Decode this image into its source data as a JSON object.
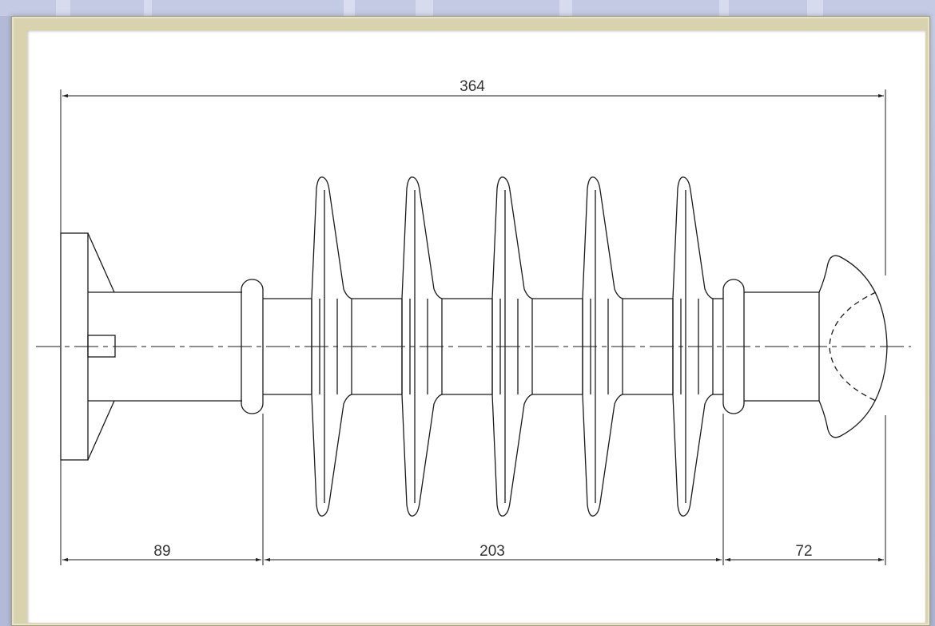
{
  "dimensions": {
    "overall_length": "364",
    "left_end_fitting": "89",
    "insulation_section": "203",
    "right_end_fitting": "72"
  },
  "shed_count": 5,
  "colors": {
    "line": "#1a1a1a",
    "paper": "#ffffff",
    "frame": "#d8d2ae",
    "background": "#bcc3de"
  }
}
